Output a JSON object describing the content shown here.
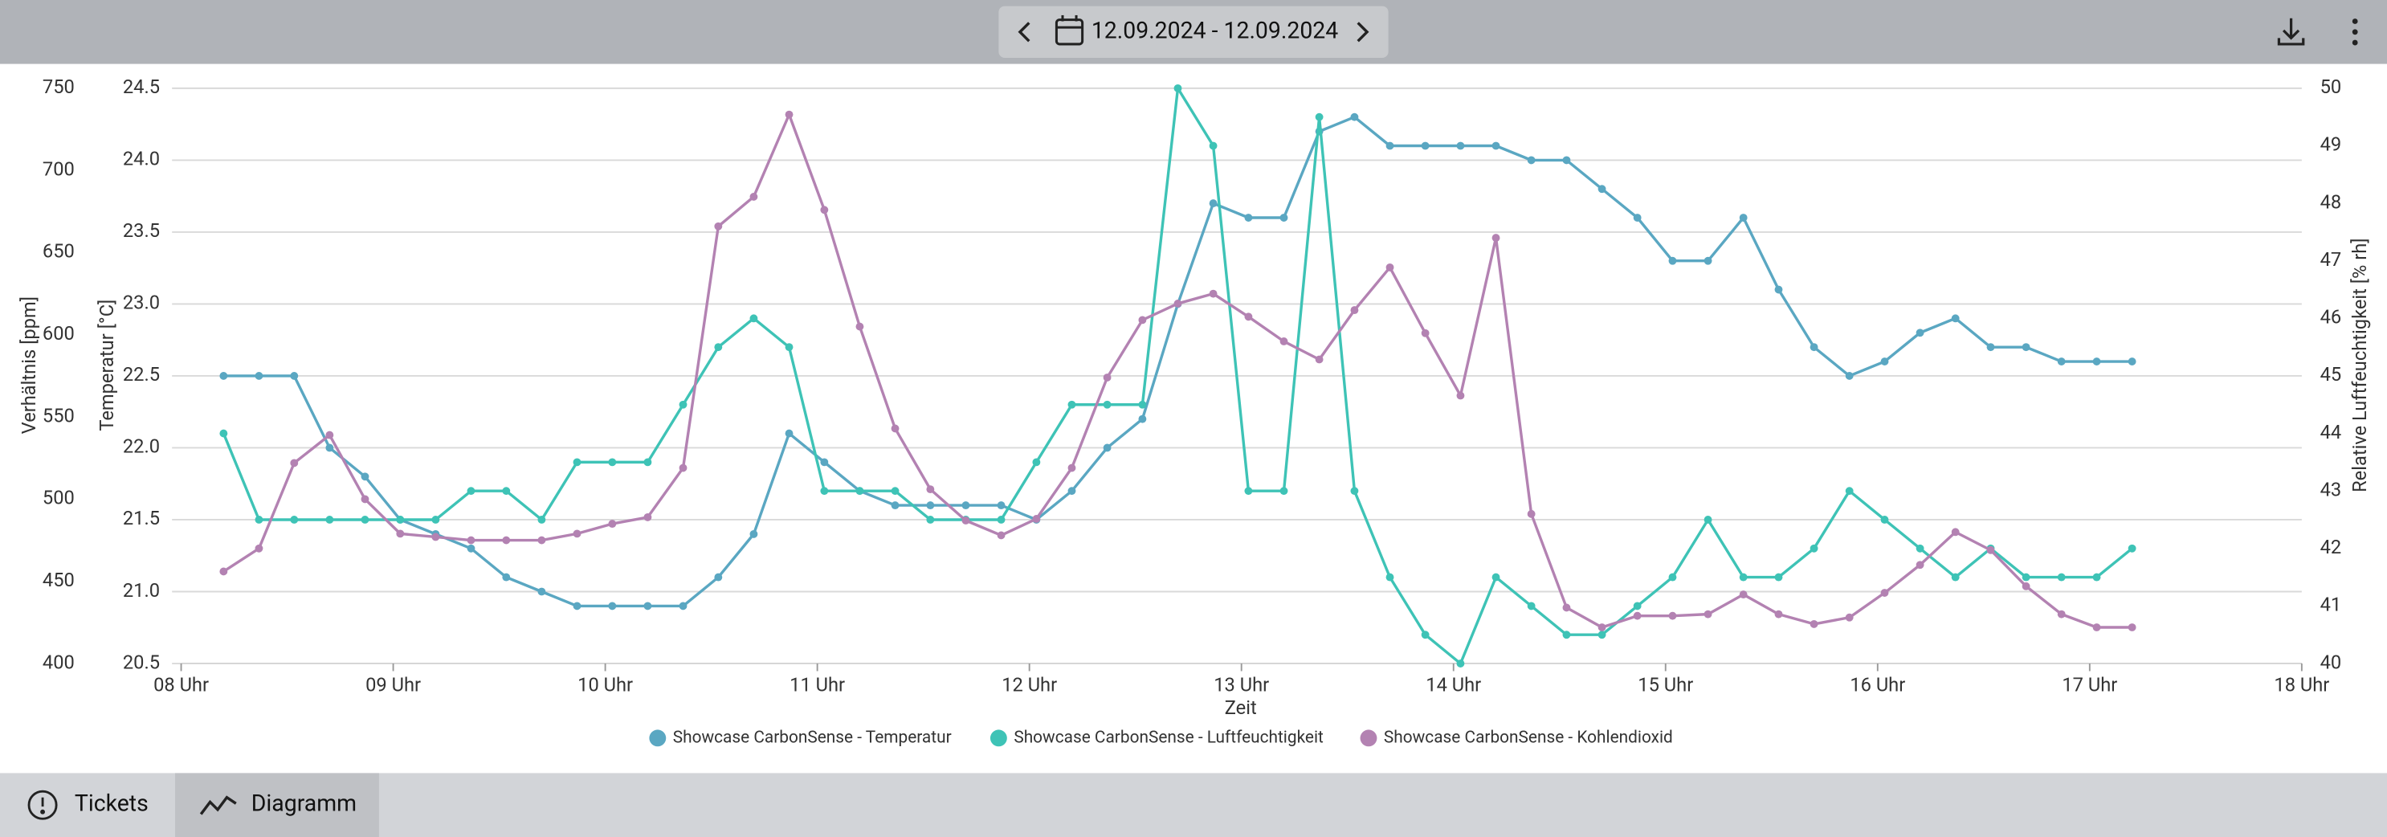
{
  "header": {
    "date_range": "12.09.2024 - 12.09.2024"
  },
  "tabs": [
    "Tickets",
    "Diagramm"
  ],
  "chart_data": {
    "type": "line",
    "xlabel": "Zeit",
    "ylabel": "Temperatur [°C]",
    "y2label": "Relative Luftfeuchtigkeit [% rh]",
    "y3label": "Verhältnis [ppm]",
    "grid": true,
    "legend": "bottom",
    "xlim": [
      8,
      18
    ],
    "xticks": [
      {
        "value": 8,
        "label": "08 Uhr"
      },
      {
        "value": 9,
        "label": "09 Uhr"
      },
      {
        "value": 10,
        "label": "10 Uhr"
      },
      {
        "value": 11,
        "label": "11 Uhr"
      },
      {
        "value": 12,
        "label": "12 Uhr"
      },
      {
        "value": 13,
        "label": "13 Uhr"
      },
      {
        "value": 14,
        "label": "14 Uhr"
      },
      {
        "value": 15,
        "label": "15 Uhr"
      },
      {
        "value": 16,
        "label": "16 Uhr"
      },
      {
        "value": 17,
        "label": "17 Uhr"
      },
      {
        "value": 18,
        "label": "18 Uhr"
      }
    ],
    "ylim": [
      20.5,
      24.5
    ],
    "yticks": [
      20.5,
      {
        "value": 21,
        "label": "21.0"
      },
      21.5,
      {
        "value": 22,
        "label": "22.0"
      },
      22.5,
      {
        "value": 23,
        "label": "23.0"
      },
      23.5,
      {
        "value": 24,
        "label": "24.0"
      },
      24.5
    ],
    "y2lim": [
      40,
      50
    ],
    "y2ticks": [
      40,
      41,
      42,
      43,
      44,
      45,
      46,
      47,
      48,
      49,
      50
    ],
    "y3lim": [
      400,
      750
    ],
    "y3ticks": [
      400,
      450,
      500,
      550,
      600,
      650,
      700,
      750
    ],
    "x": [
      8.2,
      8.367,
      8.533,
      8.7,
      8.867,
      9.033,
      9.2,
      9.367,
      9.533,
      9.7,
      9.867,
      10.033,
      10.2,
      10.367,
      10.533,
      10.7,
      10.867,
      11.033,
      11.2,
      11.367,
      11.533,
      11.7,
      11.867,
      12.033,
      12.2,
      12.367,
      12.533,
      12.7,
      12.867,
      13.033,
      13.2,
      13.367,
      13.533,
      13.7,
      13.867,
      14.033,
      14.2,
      14.367,
      14.533,
      14.7,
      14.867,
      15.033,
      15.2,
      15.367,
      15.533,
      15.7,
      15.867,
      16.033,
      16.2,
      16.367,
      16.533,
      16.7,
      16.867,
      17.033,
      17.2
    ],
    "series": [
      {
        "name": "Showcase CarbonSense - Temperatur",
        "color": "#5aa7c2",
        "axis": "y",
        "values": [
          22.5,
          22.5,
          22.5,
          22.0,
          21.8,
          21.5,
          21.4,
          21.3,
          21.1,
          21.0,
          20.9,
          20.9,
          20.9,
          20.9,
          21.1,
          21.4,
          22.1,
          21.9,
          21.7,
          21.6,
          21.6,
          21.6,
          21.6,
          21.5,
          21.7,
          22.0,
          22.2,
          23.0,
          23.7,
          23.6,
          23.6,
          24.2,
          24.3,
          24.1,
          24.1,
          24.1,
          24.1,
          24.0,
          24.0,
          23.8,
          23.6,
          23.3,
          23.3,
          23.6,
          23.1,
          22.7,
          22.5,
          22.6,
          22.8,
          22.9,
          22.7,
          22.7,
          22.6,
          22.6,
          22.6
        ]
      },
      {
        "name": "Showcase CarbonSense - Luftfeuchtigkeit",
        "color": "#3ec3b6",
        "axis": "y2",
        "values": [
          44,
          42.5,
          42.5,
          42.5,
          42.5,
          42.5,
          42.5,
          43,
          43,
          42.5,
          43.5,
          43.5,
          43.5,
          44.5,
          45.5,
          46,
          45.5,
          43,
          43,
          43,
          42.5,
          42.5,
          42.5,
          43.5,
          44.5,
          44.5,
          44.5,
          50,
          49,
          43,
          43,
          49.5,
          43,
          41.5,
          40.5,
          40,
          41.5,
          41,
          40.5,
          40.5,
          41,
          41.5,
          42.5,
          41.5,
          41.5,
          42,
          43,
          42.5,
          42,
          41.5,
          42,
          41.5,
          41.5,
          41.5,
          42
        ]
      },
      {
        "name": "Showcase CarbonSense - Kohlendioxid",
        "color": "#b382b2",
        "axis": "y3",
        "values": [
          456,
          470,
          522,
          539,
          500,
          479,
          477,
          475,
          475,
          475,
          479,
          485,
          489,
          519,
          666,
          684,
          734,
          676,
          605,
          543,
          506,
          487,
          478,
          488,
          519,
          574,
          609,
          619,
          625,
          611,
          596,
          585,
          615,
          641,
          601,
          563,
          659,
          491,
          434,
          422,
          429,
          429,
          430,
          442,
          430,
          424,
          428,
          443,
          460,
          480,
          469,
          447,
          430,
          422,
          422
        ]
      }
    ]
  }
}
